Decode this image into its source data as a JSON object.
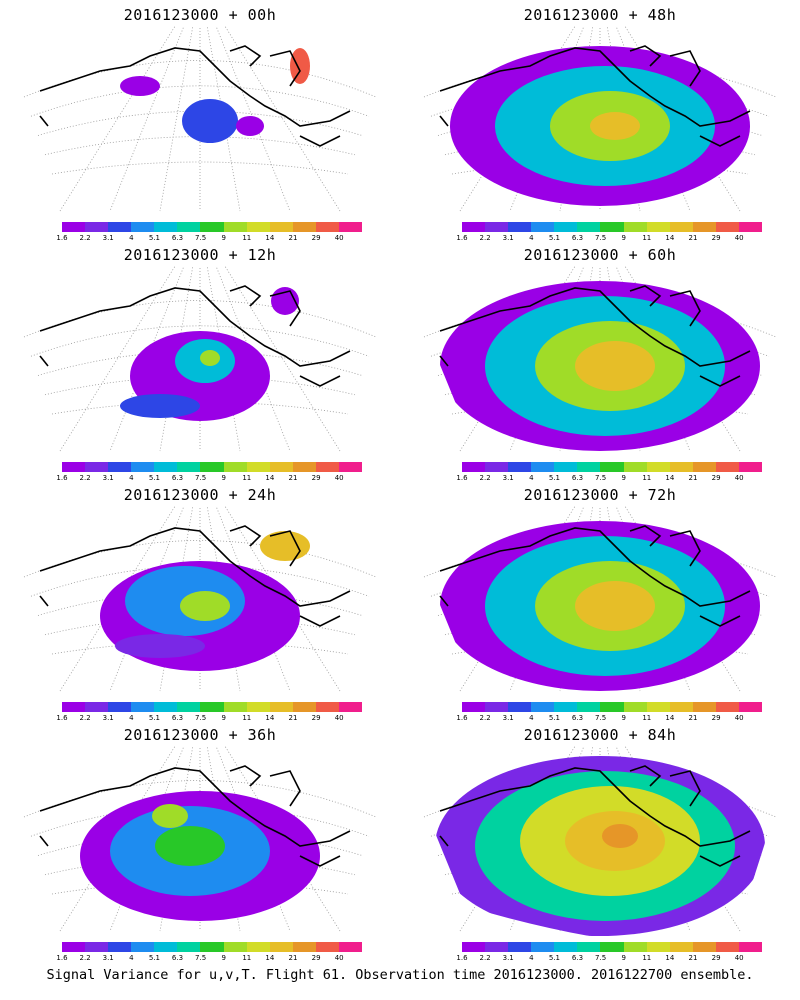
{
  "panels": [
    {
      "title": "2016123000 + 00h",
      "level": 0
    },
    {
      "title": "2016123000 + 48h",
      "level": 4
    },
    {
      "title": "2016123000 + 12h",
      "level": 1
    },
    {
      "title": "2016123000 + 60h",
      "level": 5
    },
    {
      "title": "2016123000 + 24h",
      "level": 2
    },
    {
      "title": "2016123000 + 72h",
      "level": 5
    },
    {
      "title": "2016123000 + 36h",
      "level": 3
    },
    {
      "title": "2016123000 + 84h",
      "level": 6
    }
  ],
  "colorbar": {
    "labels": [
      "1.6",
      "2.2",
      "3.1",
      "4",
      "5.1",
      "6.3",
      "7.5",
      "9",
      "11",
      "14",
      "21",
      "29",
      "40"
    ],
    "colors": [
      "#9a00e6",
      "#7a28e6",
      "#2d46e6",
      "#1e8cf0",
      "#00bcd8",
      "#00d2a0",
      "#28c828",
      "#a0dc28",
      "#d2dc28",
      "#e6be28",
      "#e69628",
      "#f05a46",
      "#f01e8c"
    ]
  },
  "footer": "Signal Variance for u,v,T. Flight 61. Observation time 2016123000. 2016122700 ensemble."
}
